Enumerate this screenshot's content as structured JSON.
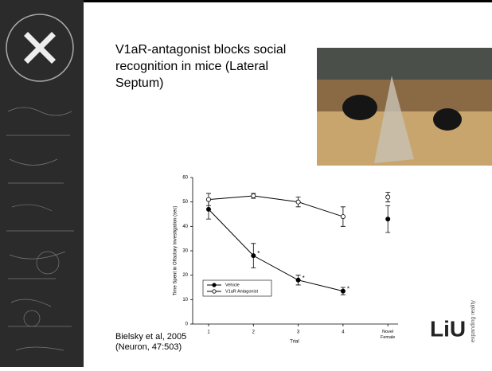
{
  "slide": {
    "title": "V1aR-antagonist blocks social recognition in mice (Lateral Septum)",
    "citation": "Bielsky et al, 2005 (Neuron, 47:503)",
    "logo": "LiU",
    "logo_tagline": "expanding reality"
  },
  "chart_data": {
    "type": "line",
    "x_label": "Trial",
    "y_label": "Time Spent in Olfactory Investigation (sec)",
    "categories": [
      1,
      2,
      3,
      4,
      "Novel Female"
    ],
    "ylim": [
      0,
      60
    ],
    "yticks": [
      0,
      10,
      20,
      30,
      40,
      50,
      60
    ],
    "series": [
      {
        "name": "Vehicle",
        "color": "#000000",
        "filled": true,
        "values": [
          47,
          28,
          18,
          13.5,
          43
        ],
        "errors": [
          4,
          5,
          2,
          1.5,
          5.5
        ],
        "significance": [
          null,
          "*",
          "*",
          "*",
          null
        ]
      },
      {
        "name": "V1aR Antagonist",
        "color": "#000000",
        "filled": false,
        "values": [
          51,
          52.5,
          50,
          44,
          52
        ],
        "errors": [
          2.5,
          1,
          2,
          4,
          2
        ]
      }
    ]
  }
}
